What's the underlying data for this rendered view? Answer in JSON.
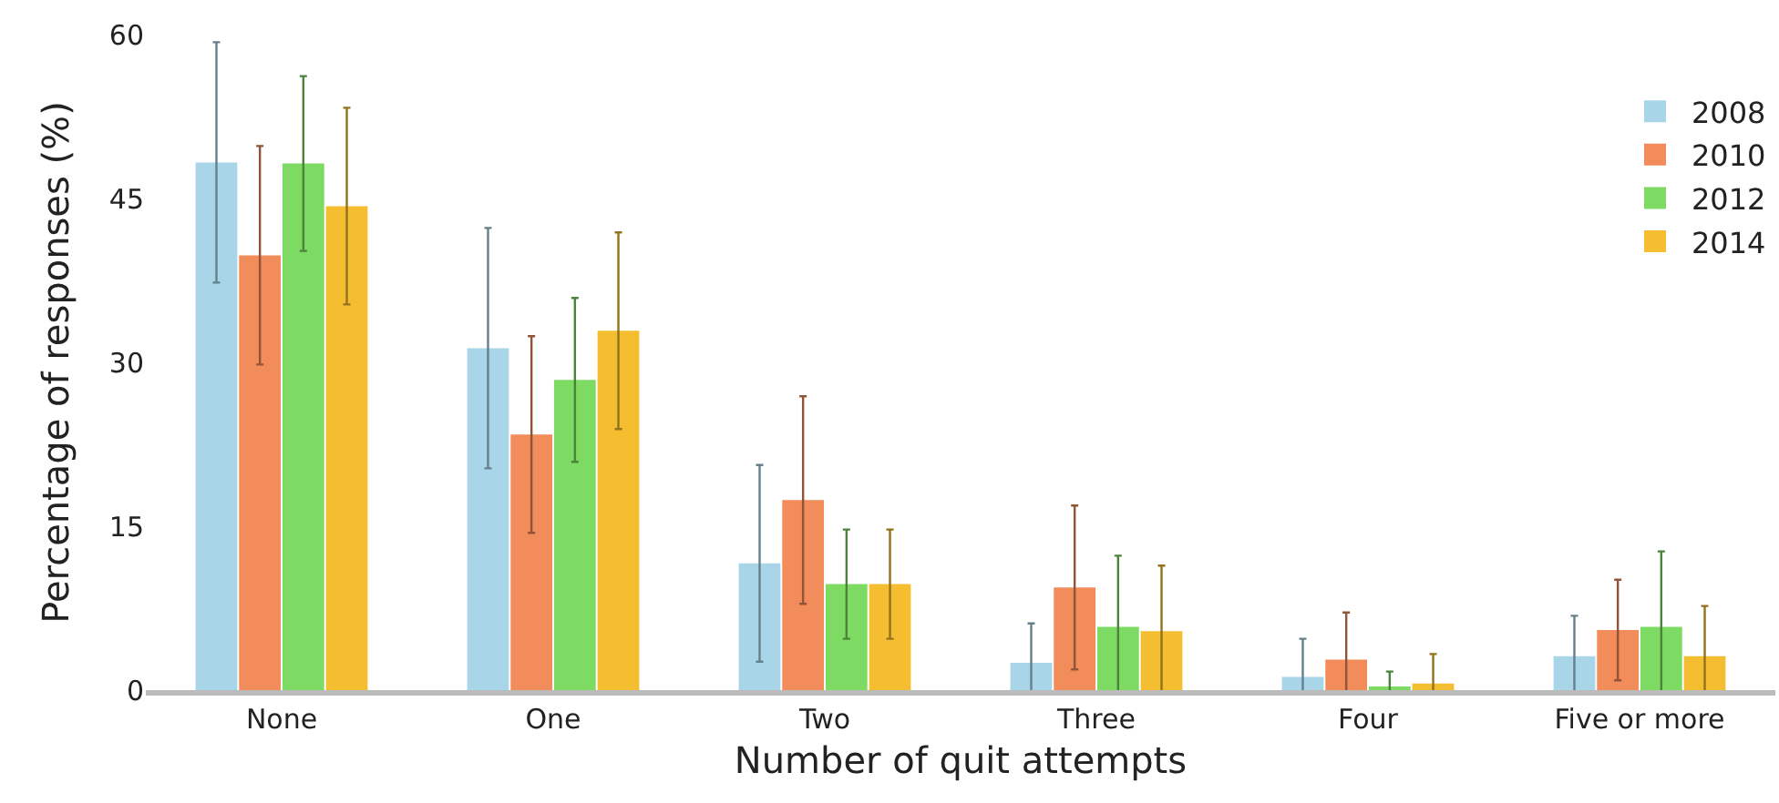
{
  "chart_data": {
    "type": "bar",
    "xlabel": "Number of quit attempts",
    "ylabel": "Percentage of responses (%)",
    "categories": [
      "None",
      "One",
      "Two",
      "Three",
      "Four",
      "Five or more"
    ],
    "series": [
      {
        "name": "2008",
        "color": "#a8d5e8",
        "values": [
          48.3,
          31.3,
          11.6,
          2.5,
          1.2,
          3.1
        ],
        "errors": [
          11,
          11,
          9,
          3.6,
          3.5,
          3.7
        ]
      },
      {
        "name": "2010",
        "color": "#f28c5a",
        "values": [
          39.8,
          23.4,
          17.4,
          9.4,
          2.8,
          5.5
        ],
        "errors": [
          10,
          9,
          9.5,
          7.5,
          4.3,
          4.6
        ]
      },
      {
        "name": "2012",
        "color": "#7ddb63",
        "values": [
          48.2,
          28.4,
          9.7,
          5.8,
          0.3,
          5.8
        ],
        "errors": [
          8,
          7.5,
          5,
          6.5,
          1.4,
          6.9
        ]
      },
      {
        "name": "2014",
        "color": "#f5be30",
        "values": [
          44.3,
          32.9,
          9.7,
          5.4,
          0.6,
          3.1
        ],
        "errors": [
          9,
          9,
          5,
          6,
          2.7,
          4.6
        ]
      }
    ],
    "ylim": [
      0,
      60
    ],
    "yticks": [
      0,
      15,
      30,
      45,
      60
    ],
    "grid": false,
    "legend": "top right"
  }
}
